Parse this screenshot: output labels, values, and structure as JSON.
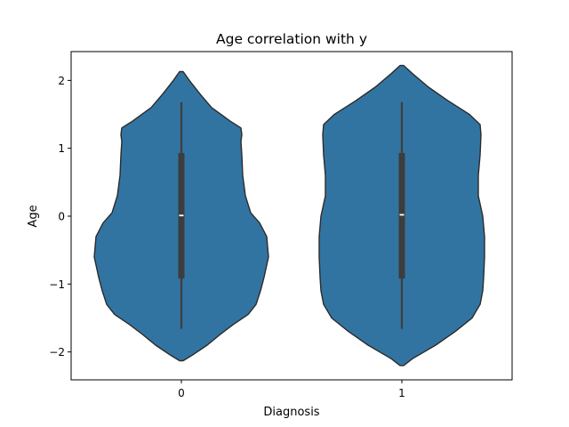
{
  "chart_data": {
    "type": "violin",
    "title": "Age correlation with y",
    "xlabel": "Diagnosis",
    "ylabel": "Age",
    "categories": [
      "0",
      "1"
    ],
    "ylim": [
      -2.4,
      2.42
    ],
    "yticks": [
      2,
      1,
      0,
      -1,
      -2
    ],
    "ytick_labels": [
      "2",
      "1",
      "0",
      "−1",
      "−2"
    ],
    "grid": false,
    "legend": "none",
    "colors": {
      "violin_fill": "#3274a1",
      "violin_edge": "#2b2b2b",
      "box": "#3d3d3d",
      "median": "#ffffff"
    },
    "violins": [
      {
        "category": "0",
        "quartiles": {
          "min": -1.66,
          "q1": -0.92,
          "median": 0.01,
          "q3": 0.93,
          "max": 1.68
        },
        "density_extent": [
          -2.13,
          2.13
        ],
        "profile": [
          [
            -2.13,
            0.02
          ],
          [
            -2.05,
            0.12
          ],
          [
            -1.9,
            0.29
          ],
          [
            -1.75,
            0.43
          ],
          [
            -1.6,
            0.58
          ],
          [
            -1.45,
            0.75
          ],
          [
            -1.3,
            0.84
          ],
          [
            -1.1,
            0.89
          ],
          [
            -0.9,
            0.93
          ],
          [
            -0.6,
            0.98
          ],
          [
            -0.3,
            0.96
          ],
          [
            -0.1,
            0.88
          ],
          [
            0.05,
            0.78
          ],
          [
            0.3,
            0.72
          ],
          [
            0.6,
            0.69
          ],
          [
            0.9,
            0.68
          ],
          [
            1.1,
            0.67
          ],
          [
            1.2,
            0.68
          ],
          [
            1.3,
            0.67
          ],
          [
            1.4,
            0.55
          ],
          [
            1.6,
            0.34
          ],
          [
            1.8,
            0.21
          ],
          [
            2.0,
            0.09
          ],
          [
            2.13,
            0.02
          ]
        ]
      },
      {
        "category": "1",
        "quartiles": {
          "min": -1.66,
          "q1": -0.92,
          "median": 0.02,
          "q3": 0.93,
          "max": 1.68
        },
        "density_extent": [
          -2.2,
          2.22
        ],
        "profile": [
          [
            -2.2,
            0.02
          ],
          [
            -2.1,
            0.12
          ],
          [
            -1.9,
            0.38
          ],
          [
            -1.7,
            0.6
          ],
          [
            -1.5,
            0.79
          ],
          [
            -1.3,
            0.88
          ],
          [
            -1.1,
            0.91
          ],
          [
            -0.9,
            0.92
          ],
          [
            -0.6,
            0.93
          ],
          [
            -0.3,
            0.93
          ],
          [
            0.0,
            0.91
          ],
          [
            0.3,
            0.86
          ],
          [
            0.6,
            0.86
          ],
          [
            0.9,
            0.88
          ],
          [
            1.2,
            0.89
          ],
          [
            1.35,
            0.88
          ],
          [
            1.5,
            0.76
          ],
          [
            1.7,
            0.52
          ],
          [
            1.9,
            0.3
          ],
          [
            2.1,
            0.12
          ],
          [
            2.22,
            0.02
          ]
        ]
      }
    ]
  }
}
